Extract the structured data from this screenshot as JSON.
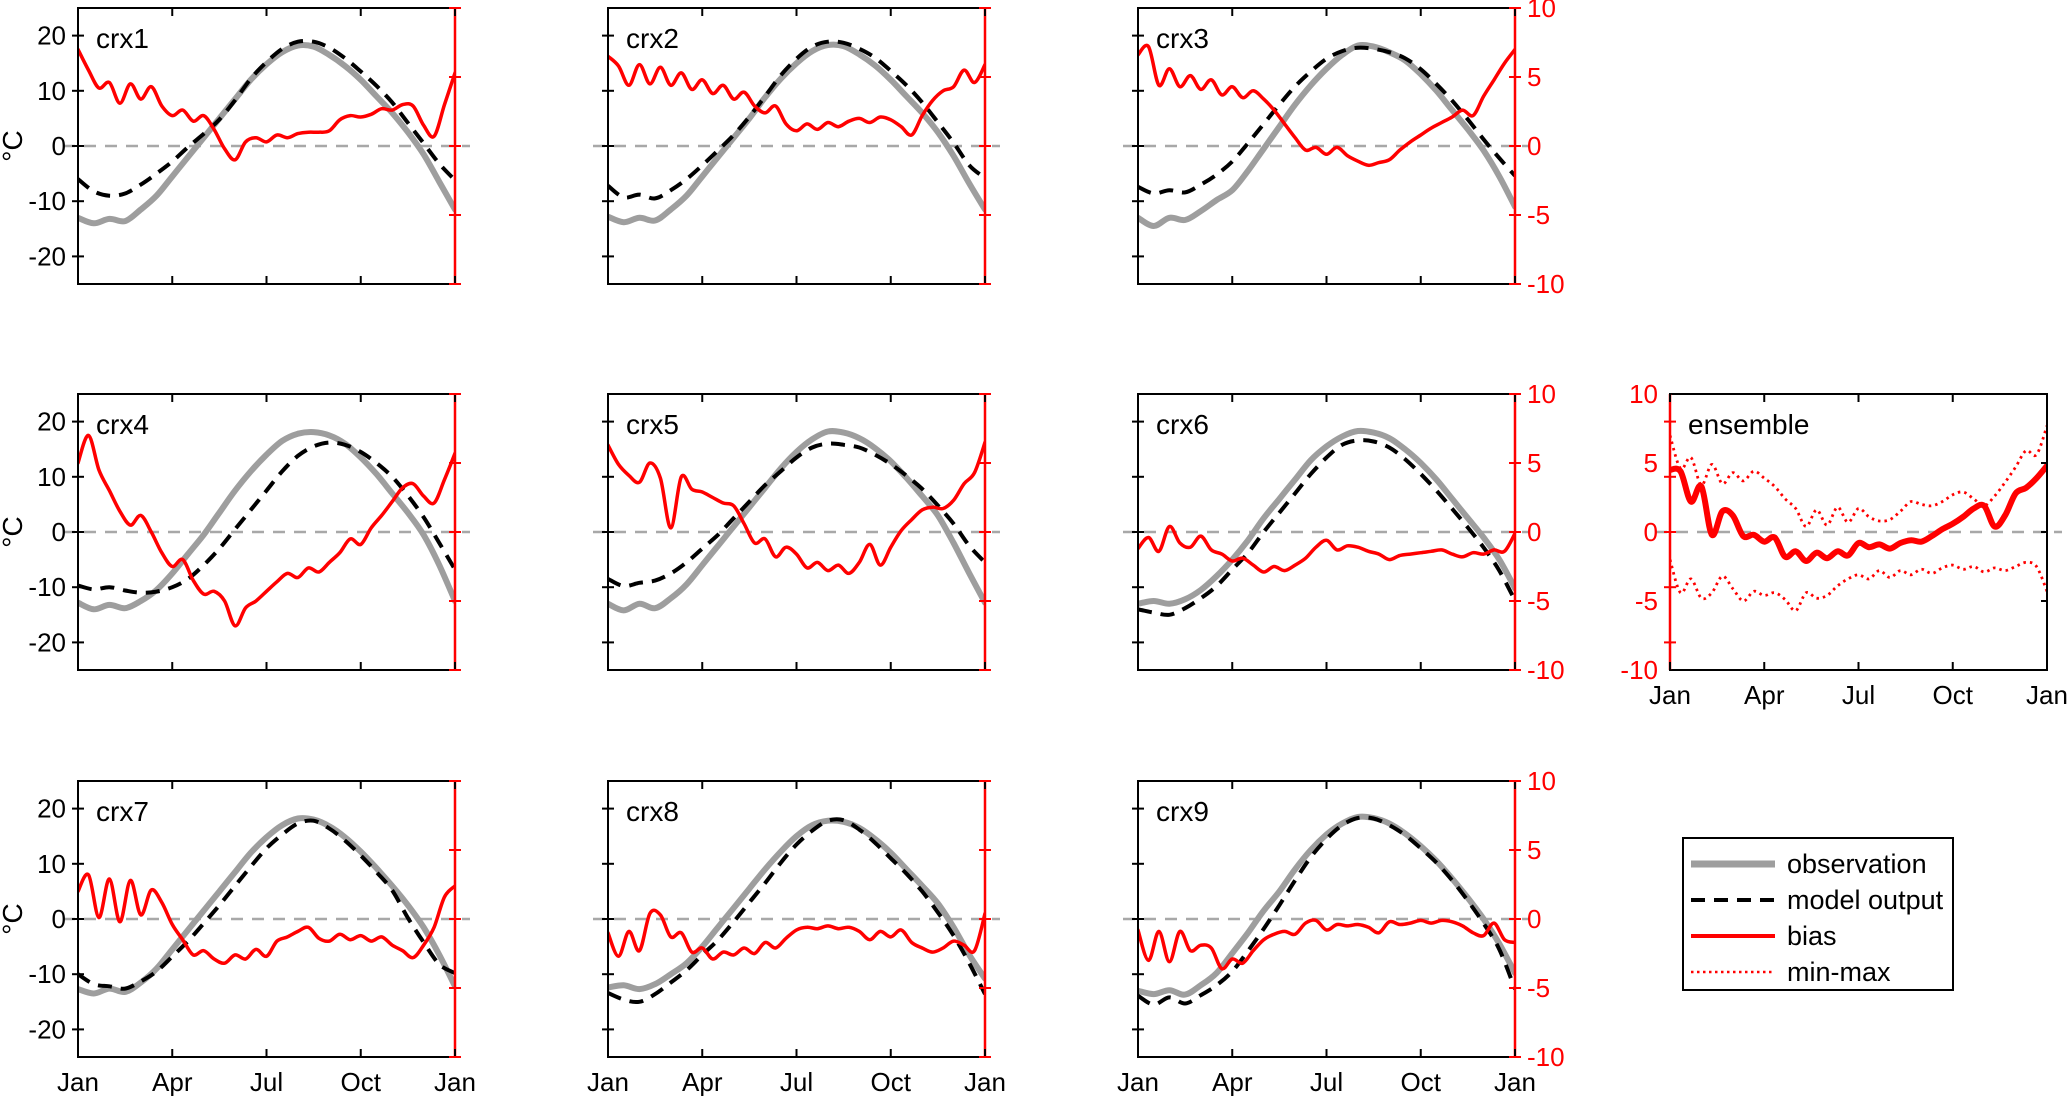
{
  "chart_data": {
    "type": "line",
    "x_tick_labels": [
      "Jan",
      "Apr",
      "Jul",
      "Oct",
      "Jan"
    ],
    "x_tick_months": [
      0,
      3,
      6,
      9,
      12
    ],
    "left_axis": {
      "label": "°C",
      "ticks": [
        20,
        10,
        0,
        -10,
        -20
      ],
      "tick_labels": [
        "20",
        "10",
        "0",
        "-10",
        "-20"
      ],
      "range": [
        -25,
        25
      ]
    },
    "right_axis": {
      "ticks": [
        10,
        5,
        0,
        -5,
        -10
      ],
      "tick_labels": [
        "10",
        "5",
        "0",
        "-5",
        "-10"
      ],
      "range": [
        -10,
        10
      ]
    },
    "zero_reference_line": 0,
    "colors": {
      "observation": "#9e9e9e",
      "model": "#000000",
      "bias": "#ff0000",
      "zero_line": "#a8a8a8",
      "axis": "#000000",
      "right_axis": "#ff0000"
    },
    "panels": [
      {
        "id": "crx1",
        "title": "crx1",
        "observation": [
          -13,
          -14,
          -13.2,
          -13.6,
          -11.5,
          -9,
          -5.5,
          -2,
          1.5,
          5,
          8.5,
          12,
          14.8,
          17,
          18.2,
          18,
          16.5,
          14.5,
          12,
          9,
          6,
          2.5,
          -1.5,
          -6.5,
          -11.5
        ],
        "model_output": [
          -6,
          -8.2,
          -9,
          -8.6,
          -7,
          -5,
          -2.8,
          -0.2,
          2.2,
          4.8,
          8.3,
          12.2,
          15.2,
          17.6,
          18.9,
          18.9,
          17.8,
          15.9,
          13.5,
          10.9,
          7.9,
          4.2,
          0.5,
          -3.2,
          -6.2
        ],
        "bias": [
          7,
          5.5,
          4.2,
          4.6,
          3.1,
          4.5,
          3.4,
          4.3,
          2.9,
          2.2,
          2.6,
          1.8,
          2.2,
          1.2,
          -0.2,
          -1,
          0.3,
          0.6,
          0.3,
          0.8,
          0.6,
          0.9,
          1,
          1,
          1.1,
          1.9,
          2.2,
          2.1,
          2.3,
          2.7,
          2.6,
          3,
          2.9,
          1.5,
          0.7,
          3,
          5.3
        ]
      },
      {
        "id": "crx2",
        "title": "crx2",
        "observation": [
          -12.8,
          -13.8,
          -13,
          -13.5,
          -11.5,
          -9,
          -5.5,
          -2,
          1.5,
          5,
          8.8,
          12.2,
          15,
          17.2,
          18.3,
          18.1,
          16.6,
          14.6,
          12,
          9,
          6,
          2.5,
          -1.8,
          -6.8,
          -11.5
        ],
        "model_output": [
          -7.2,
          -9.3,
          -8.8,
          -9.5,
          -8,
          -6,
          -3.5,
          -0.8,
          2,
          5.3,
          9,
          12.8,
          15.8,
          18,
          18.9,
          18.7,
          17.6,
          16,
          13.6,
          11,
          7.9,
          4.3,
          0.6,
          -3.5,
          -5.8
        ],
        "bias": [
          6.5,
          5.8,
          4.4,
          5.9,
          4.5,
          5.7,
          4.4,
          5.3,
          4.1,
          4.8,
          3.8,
          4.4,
          3.4,
          3.9,
          2.9,
          2.4,
          2.9,
          1.6,
          1.1,
          1.6,
          1.2,
          1.7,
          1.4,
          1.8,
          2,
          1.7,
          2.1,
          1.9,
          1.4,
          0.8,
          2.2,
          3.3,
          4,
          4.3,
          5.5,
          4.6,
          5.9
        ]
      },
      {
        "id": "crx3",
        "title": "crx3",
        "observation": [
          -13,
          -14.5,
          -13,
          -13.4,
          -11.8,
          -9.8,
          -8,
          -4.5,
          -0.5,
          3.5,
          7.5,
          11,
          14,
          16.5,
          18.2,
          18,
          17,
          15.5,
          13,
          10,
          6.5,
          3,
          -0.8,
          -5.5,
          -11
        ],
        "model_output": [
          -7.4,
          -8.6,
          -8,
          -8.4,
          -7,
          -5.2,
          -2.8,
          0.5,
          4,
          7.5,
          10.8,
          13.5,
          15.8,
          17.2,
          17.8,
          17.6,
          17,
          15.9,
          13.9,
          11.2,
          8.2,
          4.8,
          1.2,
          -2.2,
          -5.4
        ],
        "bias": [
          6.6,
          7.2,
          4.4,
          5.6,
          4.3,
          5.1,
          4.1,
          4.8,
          3.7,
          4.3,
          3.5,
          4,
          3.4,
          2.6,
          1.6,
          0.6,
          -0.3,
          -0.1,
          -0.6,
          -0.1,
          -0.7,
          -1.1,
          -1.4,
          -1.2,
          -1,
          -0.3,
          0.3,
          0.8,
          1.3,
          1.7,
          2.1,
          2.6,
          2.2,
          3.6,
          4.8,
          6,
          7
        ]
      },
      {
        "id": "crx4",
        "title": "crx4",
        "observation": [
          -12.8,
          -14,
          -13.2,
          -13.8,
          -12.5,
          -10.5,
          -7.5,
          -4,
          -0.5,
          3.5,
          7.5,
          11,
          14,
          16.5,
          17.8,
          18.1,
          17.5,
          16,
          13.5,
          10.5,
          7,
          3.5,
          -0.5,
          -6,
          -12.5
        ],
        "model_output": [
          -9.7,
          -10.4,
          -10,
          -10.6,
          -11,
          -10.8,
          -10,
          -8.5,
          -6,
          -3,
          0.5,
          4,
          7.5,
          11,
          13.8,
          15.5,
          16.2,
          15.8,
          14.5,
          12.5,
          10,
          6.6,
          2.7,
          -2,
          -6.8
        ],
        "bias": [
          5,
          7,
          4.5,
          3,
          1.5,
          0.5,
          1.2,
          0,
          -1.5,
          -2.5,
          -2,
          -3.5,
          -4.5,
          -4.3,
          -5,
          -6.8,
          -5.5,
          -5,
          -4.3,
          -3.6,
          -3,
          -3.3,
          -2.6,
          -2.9,
          -2.2,
          -1.5,
          -0.5,
          -0.9,
          0.3,
          1.2,
          2.2,
          3.2,
          3.5,
          2.6,
          2.1,
          3.8,
          5.7
        ]
      },
      {
        "id": "crx5",
        "title": "crx5",
        "observation": [
          -13,
          -14.2,
          -13,
          -13.8,
          -12,
          -9.5,
          -6,
          -2.5,
          1,
          4.5,
          8,
          11.5,
          14.5,
          16.8,
          18.2,
          18,
          17,
          15.2,
          12.8,
          9.8,
          6.5,
          3,
          -2,
          -7.5,
          -12.8
        ],
        "model_output": [
          -8.5,
          -9.8,
          -9.2,
          -8.8,
          -7.5,
          -5.5,
          -3,
          -0.5,
          2.5,
          5.5,
          8.5,
          11,
          13.5,
          15.3,
          16,
          15.8,
          15.3,
          14,
          12.3,
          10.2,
          7.8,
          4.8,
          1.5,
          -2.5,
          -5.5
        ],
        "bias": [
          6.3,
          4.9,
          4.1,
          3.6,
          5,
          3.9,
          0.3,
          4,
          3.1,
          2.9,
          2.5,
          2.1,
          1.9,
          0.6,
          -0.8,
          -0.5,
          -1.8,
          -1.1,
          -1.6,
          -2.6,
          -2.2,
          -2.8,
          -2.4,
          -3,
          -2.2,
          -0.9,
          -2.4,
          -1.1,
          0.1,
          0.9,
          1.6,
          1.8,
          1.7,
          2.3,
          3.5,
          4.3,
          6.5
        ]
      },
      {
        "id": "crx6",
        "title": "crx6",
        "observation": [
          -13,
          -12.5,
          -13,
          -12.2,
          -10.5,
          -8,
          -5,
          -1.5,
          2.5,
          6,
          9.5,
          13,
          15.5,
          17.3,
          18.3,
          18,
          17,
          15,
          12.5,
          9.5,
          6,
          2.5,
          -1,
          -5,
          -10.2
        ],
        "model_output": [
          -14,
          -14.6,
          -15,
          -13.8,
          -12,
          -9.8,
          -6.8,
          -3.8,
          0,
          3.5,
          7,
          10.5,
          13.5,
          15.8,
          16.6,
          16.4,
          15.3,
          13.2,
          10.5,
          7.5,
          4.2,
          0.8,
          -2.8,
          -7,
          -12.4
        ],
        "bias": [
          -1.2,
          -0.4,
          -1.4,
          0.4,
          -0.8,
          -1.1,
          -0.3,
          -1.3,
          -1.6,
          -2.1,
          -1.9,
          -2.4,
          -2.9,
          -2.5,
          -2.8,
          -2.4,
          -1.9,
          -1.1,
          -0.6,
          -1.3,
          -1,
          -1.1,
          -1.4,
          -1.6,
          -2,
          -1.7,
          -1.6,
          -1.5,
          -1.4,
          -1.3,
          -1.6,
          -1.8,
          -1.5,
          -1.6,
          -1.3,
          -1.4,
          -0.1
        ]
      },
      {
        "id": "crx7",
        "title": "crx7",
        "observation": [
          -12.7,
          -13.5,
          -12.6,
          -13.2,
          -11.5,
          -9,
          -5.5,
          -2,
          1.5,
          5,
          8.5,
          12,
          14.8,
          17,
          18.2,
          18,
          16.8,
          14.8,
          12.2,
          9.2,
          6,
          2.5,
          -1.5,
          -6.5,
          -12.2
        ],
        "model_output": [
          -10,
          -11.8,
          -12.2,
          -12.6,
          -11.3,
          -9.5,
          -6.8,
          -4,
          -0.8,
          2.5,
          6,
          9.5,
          12.8,
          15.3,
          17.3,
          17.8,
          16.4,
          14.2,
          11.5,
          8.5,
          5.2,
          0.2,
          -4.2,
          -8.2,
          -9.8
        ],
        "bias": [
          2,
          3.2,
          0.1,
          2.9,
          -0.2,
          2.8,
          0.3,
          2.1,
          1.2,
          -0.4,
          -1.5,
          -2.6,
          -2.3,
          -2.9,
          -3.2,
          -2.6,
          -2.9,
          -2.2,
          -2.7,
          -1.6,
          -1.3,
          -0.9,
          -0.6,
          -1.4,
          -1.6,
          -1.1,
          -1.5,
          -1.2,
          -1.6,
          -1.3,
          -1.9,
          -2.3,
          -2.8,
          -1.9,
          -0.6,
          1.6,
          2.4
        ]
      },
      {
        "id": "crx8",
        "title": "crx8",
        "observation": [
          -12.4,
          -12,
          -12.7,
          -11.8,
          -10,
          -8,
          -5,
          -1.5,
          2,
          5.5,
          9,
          12.2,
          15,
          17,
          17.8,
          17.6,
          16.5,
          14.5,
          12,
          9,
          6,
          2.8,
          -1.5,
          -6.5,
          -10.8
        ],
        "model_output": [
          -13.4,
          -14.6,
          -15,
          -13.6,
          -11.5,
          -9.3,
          -6.5,
          -3.8,
          -0.5,
          3,
          6.5,
          10.2,
          13.5,
          16,
          17.8,
          17.9,
          16.2,
          13.8,
          11,
          8.2,
          5,
          1.2,
          -3,
          -8,
          -13.6
        ],
        "bias": [
          -1,
          -2.7,
          -0.9,
          -2.3,
          0.4,
          0.3,
          -1.3,
          -1,
          -2.4,
          -2.1,
          -2.9,
          -2.4,
          -2.6,
          -2.1,
          -2.5,
          -1.7,
          -2.1,
          -1.4,
          -0.8,
          -0.6,
          -0.7,
          -0.5,
          -0.7,
          -0.6,
          -0.9,
          -1.5,
          -0.9,
          -1.3,
          -0.8,
          -1.7,
          -2.1,
          -2.4,
          -2.1,
          -1.6,
          -1.9,
          -2.3,
          0.4
        ]
      },
      {
        "id": "crx9",
        "title": "crx9",
        "observation": [
          -13,
          -13.6,
          -12.9,
          -13.7,
          -12,
          -9.8,
          -6.2,
          -2.5,
          1.5,
          5,
          9,
          12.5,
          15.3,
          17.3,
          18.5,
          18.3,
          17.3,
          15.5,
          13.2,
          10.5,
          7.3,
          3.8,
          0,
          -4.5,
          -9.8
        ],
        "model_output": [
          -13.9,
          -15.5,
          -14.2,
          -15.3,
          -13.8,
          -12,
          -9.5,
          -5.8,
          -1.8,
          2.5,
          7,
          11.2,
          14.5,
          17,
          18.3,
          18.2,
          17,
          15.2,
          12.8,
          10.2,
          7,
          3.3,
          -0.8,
          -5.5,
          -12.7
        ],
        "bias": [
          -0.8,
          -3,
          -0.9,
          -3.1,
          -0.9,
          -2.3,
          -1.9,
          -2.1,
          -3.6,
          -2.9,
          -3.2,
          -2.3,
          -1.5,
          -1.1,
          -0.9,
          -1.1,
          -0.3,
          -0.1,
          -0.8,
          -0.4,
          -0.5,
          -0.4,
          -0.6,
          -1,
          -0.2,
          -0.4,
          -0.3,
          -0.1,
          -0.3,
          -0.1,
          -0.2,
          -0.5,
          -1,
          -1.2,
          -0.3,
          -1.5,
          -1.7
        ]
      },
      {
        "id": "ensemble",
        "title": "ensemble",
        "bias_mean": [
          4.5,
          4.4,
          2.2,
          3.3,
          -0.2,
          1.5,
          1.2,
          -0.3,
          -0.2,
          -0.7,
          -0.4,
          -1.8,
          -1.4,
          -2.1,
          -1.5,
          -1.9,
          -1.4,
          -1.7,
          -0.8,
          -1.1,
          -0.9,
          -1.2,
          -0.8,
          -0.6,
          -0.7,
          -0.3,
          0.2,
          0.6,
          1.1,
          1.7,
          1.9,
          0.4,
          1.2,
          2.8,
          3.2,
          3.9,
          4.8
        ],
        "bias_max": [
          7,
          4.6,
          5.4,
          3.4,
          4.9,
          3.5,
          4.3,
          3.7,
          4.4,
          3.9,
          3.3,
          2.4,
          1.7,
          0.4,
          1.6,
          0.5,
          1.8,
          0.7,
          1.7,
          1.1,
          0.8,
          0.9,
          1.5,
          2.2,
          2,
          1.9,
          2.2,
          2.7,
          2.9,
          2.4,
          1.9,
          2.6,
          3.6,
          4.7,
          5.9,
          5.6,
          7.7
        ],
        "bias_min": [
          -2,
          -4.4,
          -3.4,
          -4.8,
          -4.4,
          -3.2,
          -4.1,
          -5,
          -4.3,
          -4.6,
          -4.4,
          -4.9,
          -5.7,
          -4.4,
          -4.8,
          -4.6,
          -3.9,
          -3.4,
          -3.1,
          -3.4,
          -2.8,
          -3.3,
          -2.8,
          -3.1,
          -2.7,
          -3,
          -2.6,
          -2.4,
          -2.7,
          -2.5,
          -2.9,
          -2.6,
          -2.8,
          -2.5,
          -2.2,
          -2.5,
          -4.3
        ]
      }
    ],
    "legend": [
      {
        "label": "observation",
        "style": "observation"
      },
      {
        "label": "model output",
        "style": "model"
      },
      {
        "label": "bias",
        "style": "bias"
      },
      {
        "label": "min-max",
        "style": "minmax"
      }
    ]
  }
}
